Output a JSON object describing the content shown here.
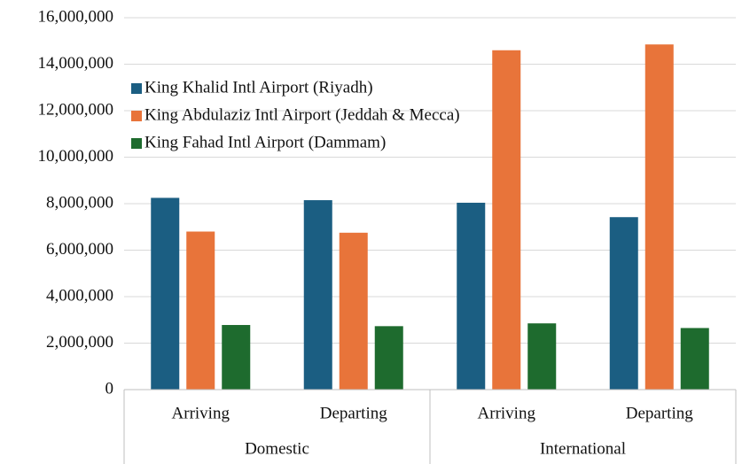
{
  "chart_data": {
    "type": "bar",
    "groups": [
      {
        "name": "Domestic",
        "categories": [
          "Arriving",
          "Departing"
        ]
      },
      {
        "name": "International",
        "categories": [
          "Arriving",
          "Departing"
        ]
      }
    ],
    "series": [
      {
        "name": "King Khalid Intl Airport (Riyadh)",
        "color": "#1b5e82",
        "values": [
          8250000,
          8150000,
          8040000,
          7420000
        ]
      },
      {
        "name": "King Abdulaziz Intl Airport (Jeddah & Mecca)",
        "color": "#e8743a",
        "values": [
          6800000,
          6750000,
          14600000,
          14850000
        ]
      },
      {
        "name": "King Fahad Intl Airport (Dammam)",
        "color": "#1e6b2e",
        "values": [
          2780000,
          2730000,
          2850000,
          2650000
        ]
      }
    ],
    "ylim": [
      0,
      16000000
    ],
    "yticks": [
      0,
      {
        "value": 2000000,
        "label": "2,000,000"
      },
      {
        "value": 4000000,
        "label": "4,000,000"
      },
      {
        "value": 6000000,
        "label": "6,000,000"
      },
      {
        "value": 8000000,
        "label": "8,000,000"
      },
      {
        "value": 10000000,
        "label": "10,000,000"
      },
      {
        "value": 12000000,
        "label": "12,000,000"
      },
      {
        "value": 14000000,
        "label": "14,000,000"
      },
      {
        "value": 16000000,
        "label": "16,000,000"
      }
    ],
    "grid": true,
    "legend": "top-left"
  }
}
